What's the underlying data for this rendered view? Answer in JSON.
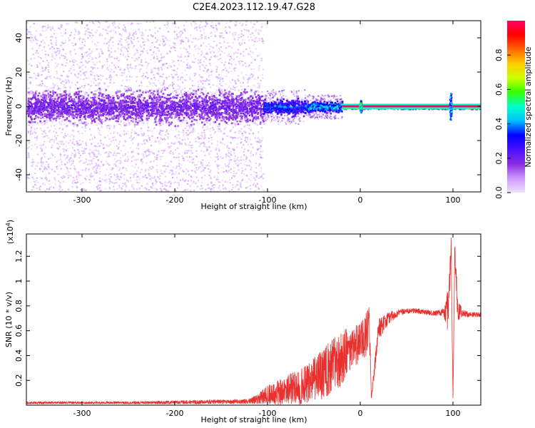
{
  "title": "C2E4.2023.112.19.47.G28",
  "chart_data": [
    {
      "type": "heatmap",
      "xlabel": "Height of straight line (km)",
      "ylabel": "Frequency (Hz)",
      "xlim": [
        -360,
        130
      ],
      "ylim": [
        -50,
        50
      ],
      "x_ticks": [
        -300,
        -200,
        -100,
        0,
        100
      ],
      "y_ticks": [
        -40,
        -20,
        0,
        20,
        40
      ],
      "colorbar": {
        "label": "Normalized spectral amplitude",
        "range": [
          0.0,
          1.0
        ],
        "ticks": [
          0.0,
          0.2,
          0.4,
          0.6,
          0.8
        ],
        "colormap": [
          "#f0e0ff",
          "#cc99ff",
          "#8a2be2",
          "#4b0fff",
          "#0000ff",
          "#00bfff",
          "#00ffcc",
          "#33ff00",
          "#ccff00",
          "#ffcc00",
          "#ff6600",
          "#ff0000",
          "#ff0066"
        ]
      },
      "bands": [
        {
          "x_range": [
            -360,
            -105
          ],
          "scatter_halfwidth_hz": 50,
          "core_halfwidth_hz": 12,
          "amplitude": 0.25
        },
        {
          "x_range": [
            -105,
            -60
          ],
          "scatter_halfwidth_hz": 10,
          "core_halfwidth_hz": 6,
          "amplitude": 0.45
        },
        {
          "x_range": [
            -60,
            -20
          ],
          "scatter_halfwidth_hz": 7,
          "core_halfwidth_hz": 4,
          "amplitude": 0.55
        },
        {
          "x_range": [
            -20,
            130
          ],
          "scatter_halfwidth_hz": 1.5,
          "core_halfwidth_hz": 1,
          "amplitude": 1.0
        }
      ],
      "features": [
        {
          "x": 0,
          "halfwidth_hz": 4,
          "amplitude": 0.6
        },
        {
          "x": 97,
          "halfwidth_hz": 10,
          "amplitude": 0.5
        }
      ]
    },
    {
      "type": "line",
      "xlabel": "Height of straight line (km)",
      "ylabel": "SNR (10 * v/v)",
      "y_multiplier": "(x10",
      "y_multiplier_exp": "4",
      "y_multiplier_close": ")",
      "xlim": [
        -360,
        130
      ],
      "ylim": [
        0,
        1.38
      ],
      "x_ticks": [
        -300,
        -200,
        -100,
        0,
        100
      ],
      "y_ticks": [
        0.2,
        0.4,
        0.6,
        0.8,
        1.0,
        1.2
      ],
      "series": [
        {
          "color": "#e8312f",
          "x": [
            -360,
            -240,
            -120,
            -110,
            -100,
            -90,
            -80,
            -70,
            -60,
            -50,
            -40,
            -30,
            -20,
            -10,
            0,
            5,
            10,
            12,
            20,
            30,
            40,
            50,
            60,
            70,
            80,
            90,
            95,
            98,
            100,
            102,
            105,
            110,
            120,
            130
          ],
          "y": [
            0.02,
            0.02,
            0.03,
            0.05,
            0.09,
            0.1,
            0.12,
            0.14,
            0.15,
            0.2,
            0.25,
            0.32,
            0.38,
            0.45,
            0.5,
            0.55,
            0.6,
            0.05,
            0.62,
            0.7,
            0.74,
            0.76,
            0.76,
            0.75,
            0.74,
            0.75,
            0.78,
            1.3,
            0.05,
            1.25,
            0.78,
            0.74,
            0.73,
            0.73
          ],
          "noise": [
            0.01,
            0.01,
            0.02,
            0.04,
            0.08,
            0.1,
            0.12,
            0.14,
            0.16,
            0.18,
            0.2,
            0.22,
            0.22,
            0.18,
            0.16,
            0.18,
            0.2,
            0.02,
            0.1,
            0.05,
            0.03,
            0.02,
            0.02,
            0.02,
            0.02,
            0.03,
            0.2,
            0.1,
            0.02,
            0.1,
            0.1,
            0.03,
            0.02,
            0.02
          ]
        }
      ]
    }
  ]
}
